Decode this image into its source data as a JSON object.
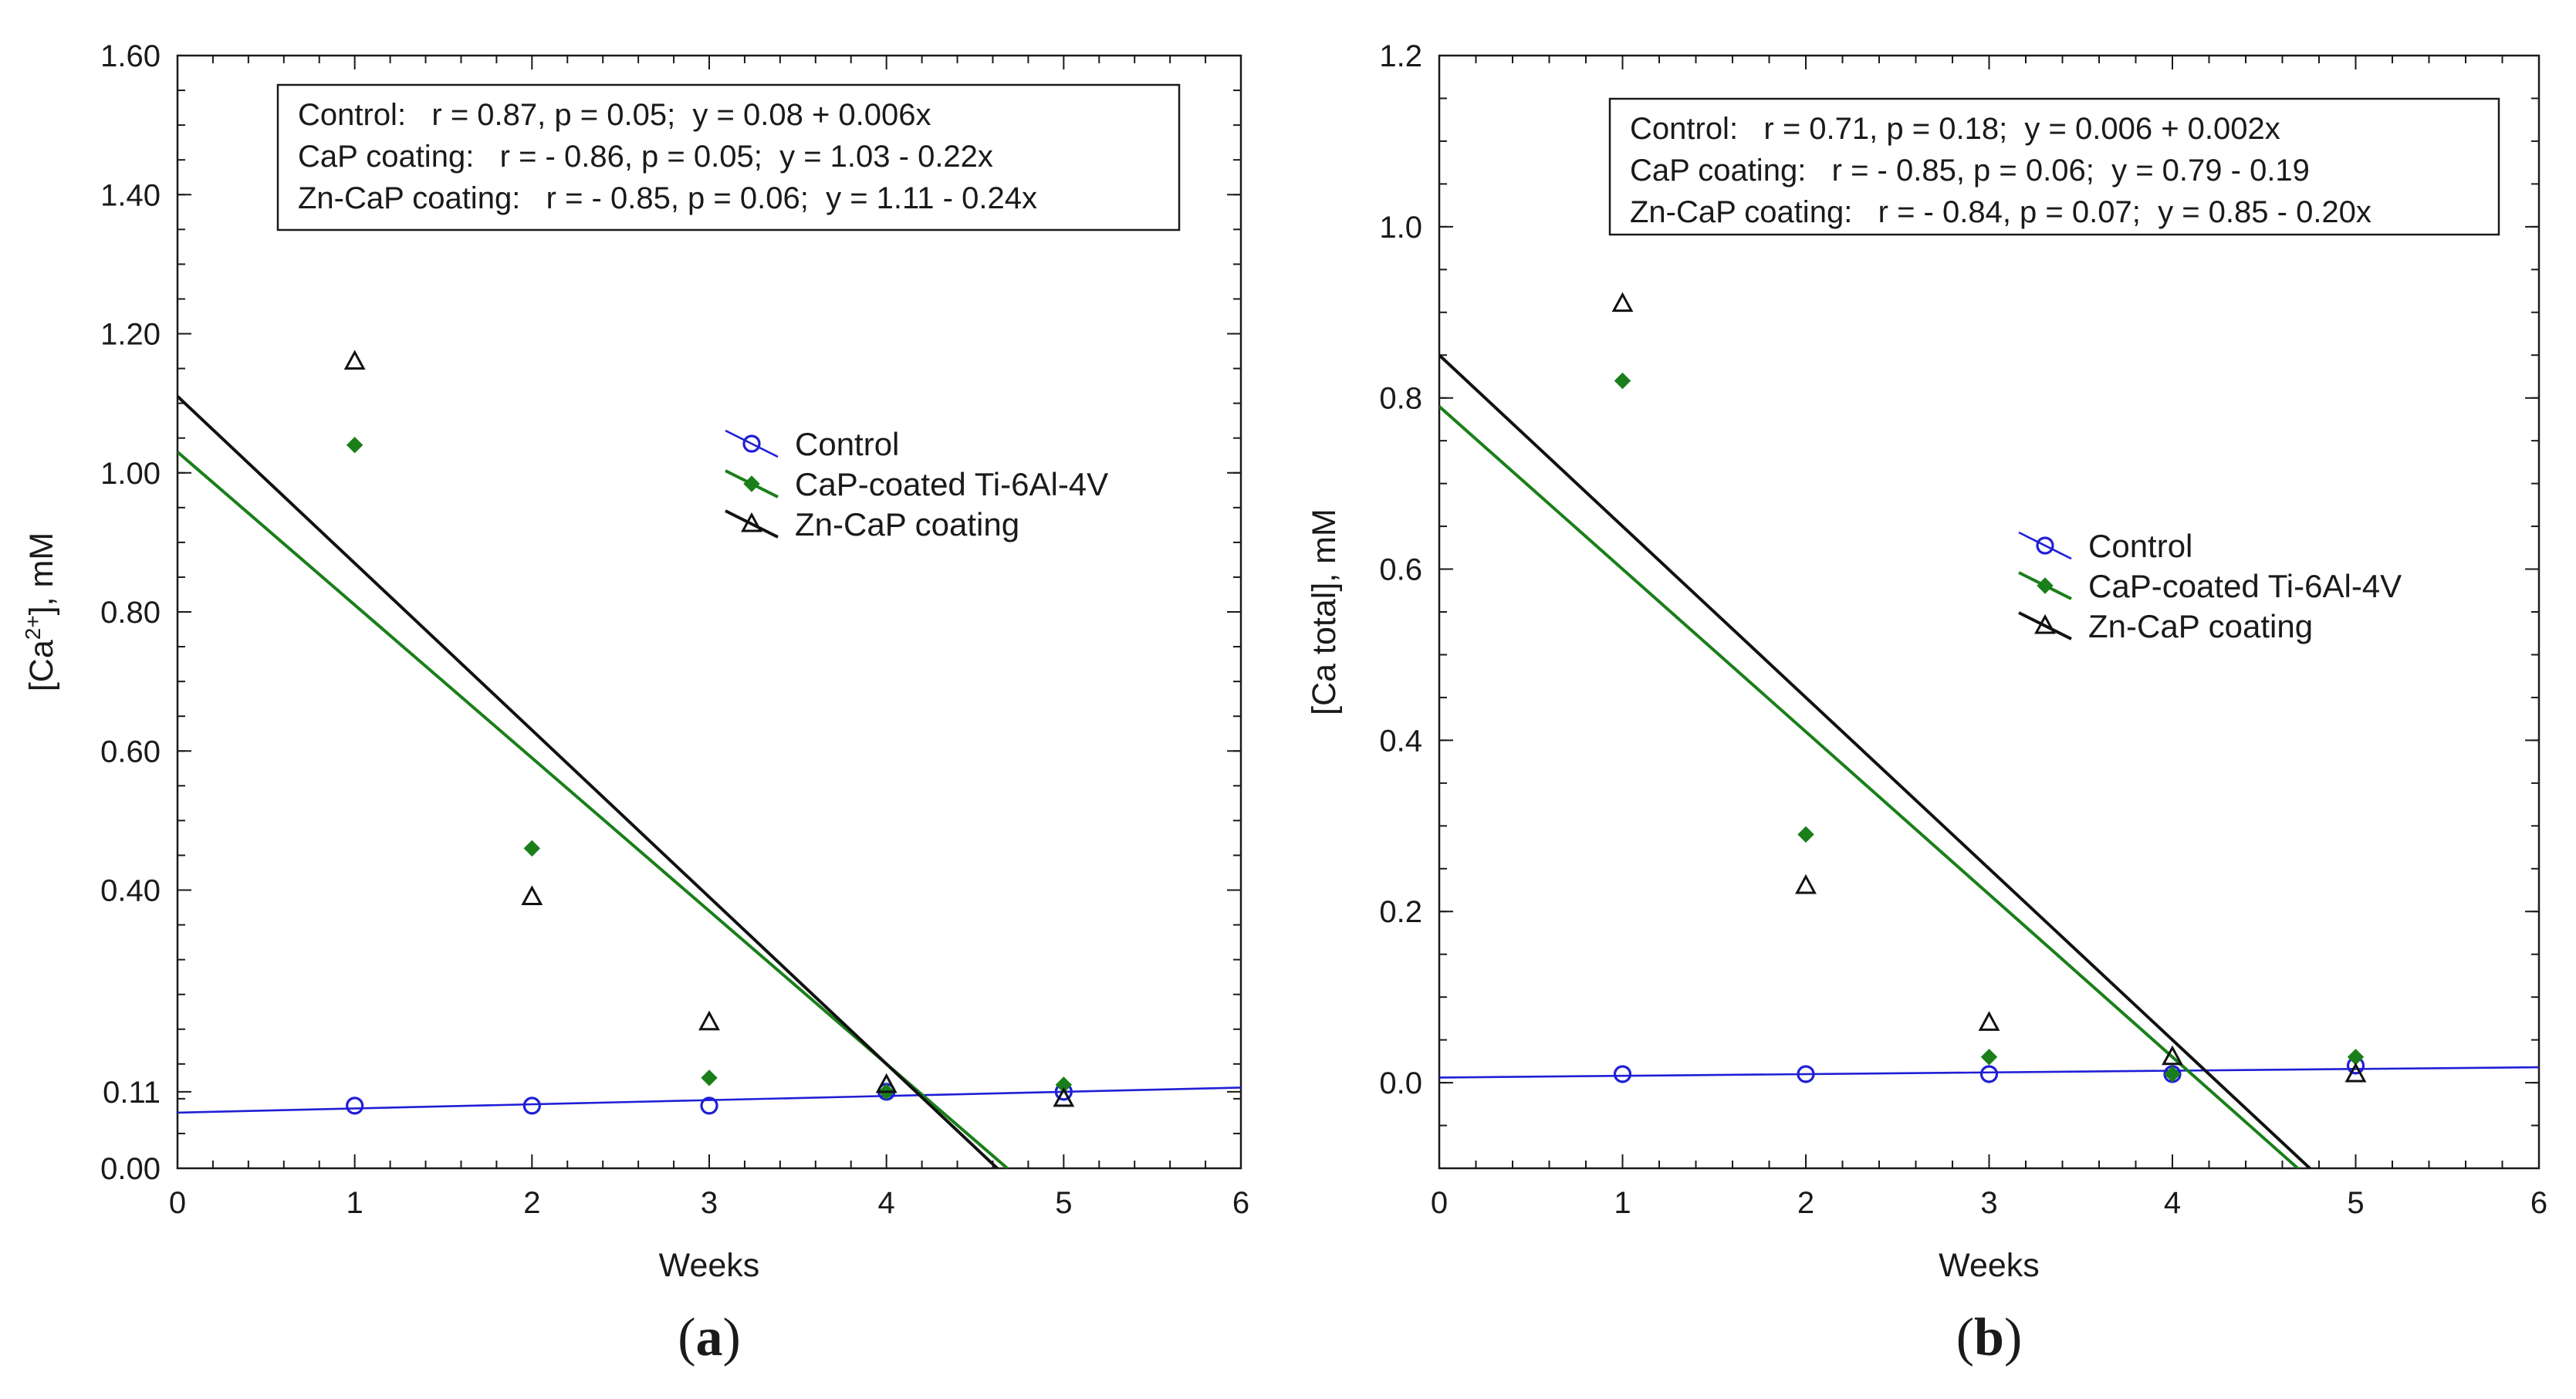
{
  "chart_data": [
    {
      "type": "scatter",
      "panel_label_prefix": "(",
      "panel_label_letter": "a",
      "panel_label_suffix": ")",
      "xlabel": "Weeks",
      "ylabel_prefix": "[Ca",
      "ylabel_sup": "2+",
      "ylabel_suffix": "], mM",
      "xlim": [
        0,
        6
      ],
      "ylim": [
        0,
        1.6
      ],
      "x_ticks": [
        0,
        1,
        2,
        3,
        4,
        5,
        6
      ],
      "y_ticks": [
        0,
        0.11,
        0.4,
        0.6,
        0.8,
        1.0,
        1.2,
        1.4,
        1.6
      ],
      "y_tick_labels": [
        "0.00",
        "0.11",
        "0.40",
        "0.60",
        "0.80",
        "1.00",
        "1.20",
        "1.40",
        "1.60"
      ],
      "equations": [
        "Control:   r = 0.87, p = 0.05;  y = 0.08 + 0.006x",
        "CaP coating:   r = - 0.86, p = 0.05;  y = 1.03 - 0.22x",
        "Zn-CaP coating:   r = - 0.85, p = 0.06;  y = 1.11 - 0.24x"
      ],
      "legend_position": "center-right",
      "series": [
        {
          "name": "Control",
          "marker": "open-circle",
          "color": "#1f1fd6",
          "x": [
            1,
            2,
            3,
            4,
            5
          ],
          "y": [
            0.09,
            0.09,
            0.09,
            0.11,
            0.11
          ],
          "fit": {
            "intercept": 0.08,
            "slope": 0.006
          }
        },
        {
          "name": "CaP-coated Ti-6Al-4V",
          "marker": "filled-diamond",
          "color": "#1a7f1a",
          "x": [
            1,
            2,
            3,
            4,
            5
          ],
          "y": [
            1.04,
            0.46,
            0.13,
            0.11,
            0.12
          ],
          "fit": {
            "intercept": 1.03,
            "slope": -0.22
          }
        },
        {
          "name": "Zn-CaP coating",
          "marker": "open-triangle",
          "color": "#111111",
          "x": [
            1,
            2,
            3,
            4,
            5
          ],
          "y": [
            1.16,
            0.39,
            0.21,
            0.12,
            0.1
          ],
          "fit": {
            "intercept": 1.11,
            "slope": -0.24
          }
        }
      ]
    },
    {
      "type": "scatter",
      "panel_label_prefix": "(",
      "panel_label_letter": "b",
      "panel_label_suffix": ")",
      "xlabel": "Weeks",
      "ylabel_prefix": "[Ca total], mM",
      "ylabel_sup": "",
      "ylabel_suffix": "",
      "xlim": [
        0,
        6
      ],
      "ylim": [
        -0.1,
        1.2
      ],
      "x_ticks": [
        0,
        1,
        2,
        3,
        4,
        5,
        6
      ],
      "y_ticks": [
        0,
        0.2,
        0.4,
        0.6,
        0.8,
        1.0,
        1.2
      ],
      "y_tick_labels": [
        "0.0",
        "0.2",
        "0.4",
        "0.6",
        "0.8",
        "1.0",
        "1.2"
      ],
      "equations": [
        "Control:   r = 0.71, p = 0.18;  y = 0.006 + 0.002x",
        "CaP coating:   r = - 0.85, p = 0.06;  y = 0.79 - 0.19",
        "Zn-CaP coating:   r = - 0.84, p = 0.07;  y = 0.85 - 0.20x"
      ],
      "legend_position": "center-right",
      "series": [
        {
          "name": "Control",
          "marker": "open-circle",
          "color": "#1f1fd6",
          "x": [
            1,
            2,
            3,
            4,
            5
          ],
          "y": [
            0.01,
            0.01,
            0.01,
            0.01,
            0.02
          ],
          "fit": {
            "intercept": 0.006,
            "slope": 0.002
          }
        },
        {
          "name": "CaP-coated Ti-6Al-4V",
          "marker": "filled-diamond",
          "color": "#1a7f1a",
          "x": [
            1,
            2,
            3,
            4,
            5
          ],
          "y": [
            0.82,
            0.29,
            0.03,
            0.01,
            0.03
          ],
          "fit": {
            "intercept": 0.79,
            "slope": -0.19
          }
        },
        {
          "name": "Zn-CaP coating",
          "marker": "open-triangle",
          "color": "#111111",
          "x": [
            1,
            2,
            3,
            4,
            5
          ],
          "y": [
            0.91,
            0.23,
            0.07,
            0.03,
            0.01
          ],
          "fit": {
            "intercept": 0.85,
            "slope": -0.2
          }
        }
      ]
    }
  ]
}
